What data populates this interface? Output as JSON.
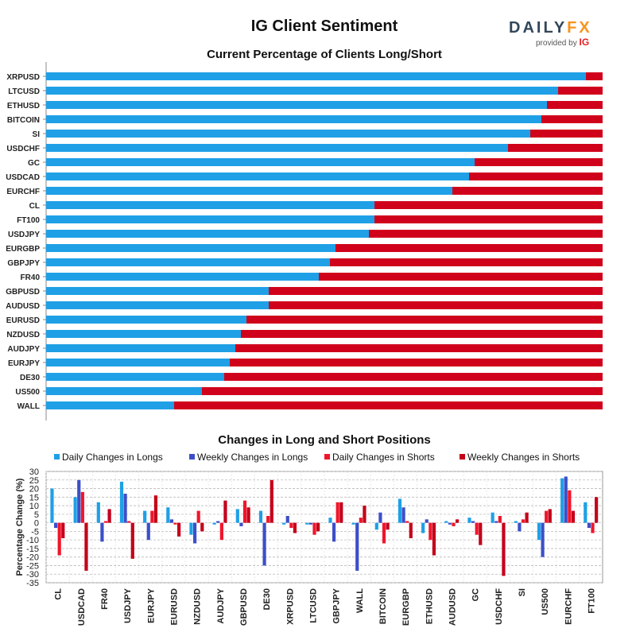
{
  "header": {
    "title": "IG Client Sentiment",
    "logo_text": "DAILYFX",
    "logo_subtitle": "provided by",
    "logo_brand": "IG"
  },
  "chart_data": [
    {
      "type": "bar",
      "orientation": "horizontal",
      "stacked": true,
      "title": "Current Percentage of Clients Long/Short",
      "categories": [
        "XRPUSD",
        "LTCUSD",
        "ETHUSD",
        "BITCOIN",
        "SI",
        "USDCHF",
        "GC",
        "USDCAD",
        "EURCHF",
        "CL",
        "FT100",
        "USDJPY",
        "EURGBP",
        "GBPJPY",
        "FR40",
        "GBPUSD",
        "AUDUSD",
        "EURUSD",
        "NZDUSD",
        "AUDJPY",
        "EURJPY",
        "DE30",
        "US500",
        "WALL"
      ],
      "series": [
        {
          "name": "Long",
          "color": "#1fa0e6",
          "values": [
            97,
            92,
            90,
            89,
            87,
            83,
            77,
            76,
            73,
            59,
            59,
            58,
            52,
            51,
            49,
            40,
            40,
            36,
            35,
            34,
            33,
            32,
            28,
            23
          ]
        },
        {
          "name": "Short",
          "color": "#d0021b",
          "values": [
            3,
            8,
            10,
            11,
            13,
            17,
            23,
            24,
            27,
            41,
            41,
            42,
            48,
            49,
            51,
            60,
            60,
            64,
            65,
            66,
            67,
            68,
            72,
            77
          ]
        }
      ],
      "xlim": [
        0,
        100
      ]
    },
    {
      "type": "bar",
      "title": "Changes in Long and Short Positions",
      "ylabel": "Percentage Change (%)",
      "ylim": [
        -35,
        30
      ],
      "yticks": [
        30,
        25,
        20,
        15,
        10,
        5,
        0,
        -5,
        -10,
        -15,
        -20,
        -25,
        -30,
        -35
      ],
      "categories": [
        "CL",
        "USDCAD",
        "FR40",
        "USDJPY",
        "EURJPY",
        "EURUSD",
        "NZDUSD",
        "AUDJPY",
        "GBPUSD",
        "DE30",
        "XRPUSD",
        "LTCUSD",
        "GBPJPY",
        "WALL",
        "BITCOIN",
        "EURGBP",
        "ETHUSD",
        "AUDUSD",
        "GC",
        "USDCHF",
        "SI",
        "US500",
        "EURCHF",
        "FT100"
      ],
      "series": [
        {
          "name": "Daily Changes in Longs",
          "color": "#1fa0e6",
          "values": [
            20,
            15,
            12,
            24,
            7,
            9,
            -7,
            -1,
            8,
            7,
            -1,
            -1,
            3,
            -1,
            -4,
            14,
            -6,
            1,
            3,
            6,
            1,
            -10,
            26,
            12
          ]
        },
        {
          "name": "Weekly Changes in Longs",
          "color": "#3c4fc8",
          "values": [
            -3,
            25,
            -11,
            17,
            -10,
            2,
            -12,
            1,
            -2,
            -25,
            4,
            -1,
            -11,
            -28,
            6,
            9,
            2,
            -1,
            1,
            1,
            -5,
            -20,
            27,
            -3
          ]
        },
        {
          "name": "Daily Changes in Shorts",
          "color": "#f0162b",
          "values": [
            -19,
            18,
            1,
            1,
            7,
            -1,
            7,
            -10,
            13,
            4,
            -3,
            -7,
            12,
            3,
            -12,
            1,
            -10,
            -2,
            -7,
            4,
            2,
            7,
            19,
            -6
          ]
        },
        {
          "name": "Weekly Changes in Shorts",
          "color": "#c4001a",
          "values": [
            -9,
            -28,
            8,
            -21,
            16,
            -8,
            -5,
            13,
            9,
            25,
            -6,
            -5,
            12,
            10,
            -4,
            -9,
            -19,
            2,
            -13,
            -31,
            6,
            8,
            7,
            15
          ]
        }
      ]
    }
  ]
}
